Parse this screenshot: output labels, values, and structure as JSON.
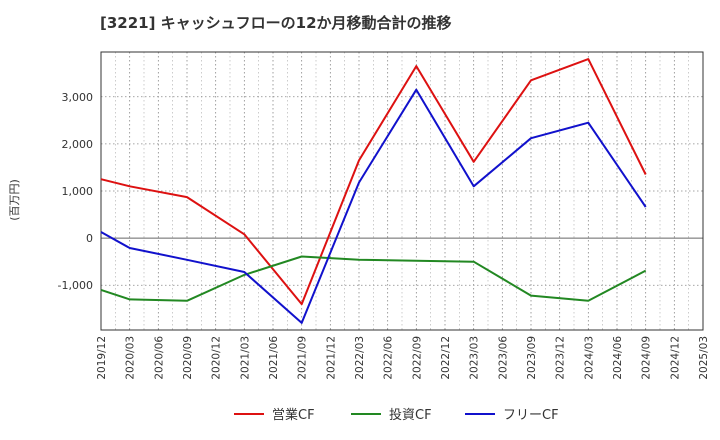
{
  "chart_data": {
    "type": "line",
    "title": "[3221]  キャッシュフローの12か月移動合計の推移",
    "ylabel": "(百万円)",
    "xlabel": "",
    "ylim": [
      -1950,
      3950
    ],
    "yticks": [
      -1000,
      0,
      1000,
      2000,
      3000
    ],
    "ytick_labels": [
      "-1,000",
      "0",
      "1,000",
      "2,000",
      "3,000"
    ],
    "categories": [
      "2019/12",
      "2020/03",
      "2020/06",
      "2020/09",
      "2020/12",
      "2021/03",
      "2021/06",
      "2021/09",
      "2021/12",
      "2022/03",
      "2022/06",
      "2022/09",
      "2022/12",
      "2023/03",
      "2023/06",
      "2023/09",
      "2023/12",
      "2024/03",
      "2024/06",
      "2024/09",
      "2024/12",
      "2025/03"
    ],
    "grid": true,
    "legend_position": "bottom",
    "series": [
      {
        "name": "営業CF",
        "color": "#dd1111",
        "points": [
          [
            "2019/12",
            1250
          ],
          [
            "2020/03",
            1100
          ],
          [
            "2020/09",
            870
          ],
          [
            "2021/03",
            80
          ],
          [
            "2021/09",
            -1400
          ],
          [
            "2022/03",
            1650
          ],
          [
            "2022/09",
            3650
          ],
          [
            "2023/03",
            1620
          ],
          [
            "2023/09",
            3350
          ],
          [
            "2024/03",
            3800
          ],
          [
            "2024/09",
            1350
          ]
        ]
      },
      {
        "name": "投資CF",
        "color": "#228822",
        "points": [
          [
            "2019/12",
            -1100
          ],
          [
            "2020/03",
            -1300
          ],
          [
            "2020/09",
            -1330
          ],
          [
            "2021/03",
            -780
          ],
          [
            "2021/09",
            -390
          ],
          [
            "2022/03",
            -460
          ],
          [
            "2022/09",
            -480
          ],
          [
            "2023/03",
            -500
          ],
          [
            "2023/09",
            -1220
          ],
          [
            "2024/03",
            -1330
          ],
          [
            "2024/09",
            -690
          ]
        ]
      },
      {
        "name": "フリーCF",
        "color": "#1111cc",
        "points": [
          [
            "2019/12",
            130
          ],
          [
            "2020/03",
            -210
          ],
          [
            "2020/09",
            -460
          ],
          [
            "2021/03",
            -720
          ],
          [
            "2021/09",
            -1800
          ],
          [
            "2022/03",
            1180
          ],
          [
            "2022/09",
            3150
          ],
          [
            "2023/03",
            1100
          ],
          [
            "2023/09",
            2120
          ],
          [
            "2024/03",
            2450
          ],
          [
            "2024/09",
            660
          ]
        ]
      }
    ]
  }
}
